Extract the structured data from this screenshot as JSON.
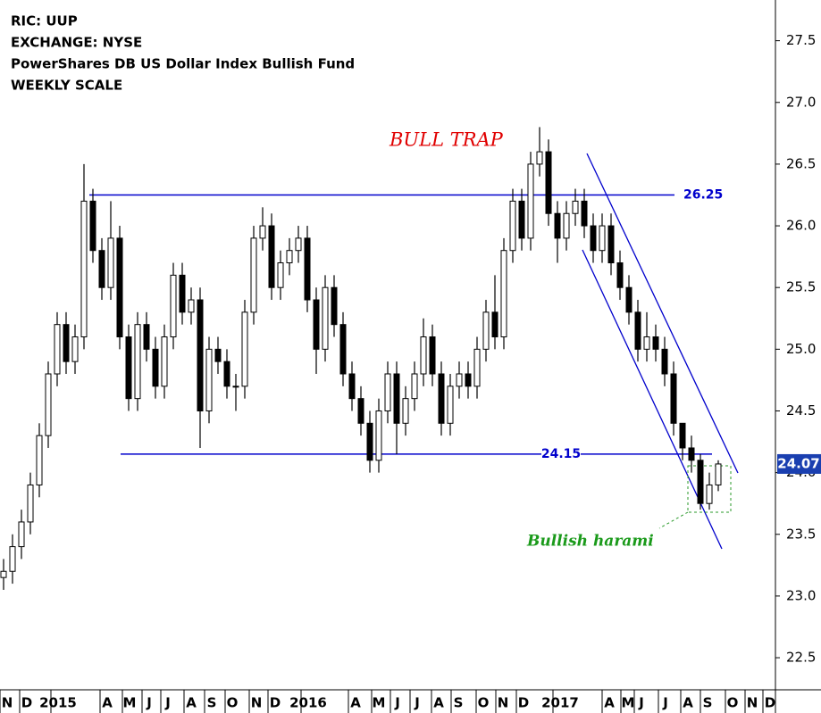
{
  "chart_data": {
    "type": "candlestick",
    "header": [
      "RIC: UUP",
      "EXCHANGE: NYSE",
      "PowerShares DB US Dollar Index Bullish Fund",
      "WEEKLY SCALE"
    ],
    "annotations": {
      "bull_trap": "BULL TRAP",
      "harami": "Bullish harami"
    },
    "levels": [
      26.25,
      24.15
    ],
    "last_price": 24.07,
    "open": [
      23.15,
      23.2,
      23.4,
      23.6,
      23.9,
      24.3,
      24.8,
      25.2,
      24.9,
      25.1,
      26.2,
      25.8,
      25.5,
      25.9,
      25.1,
      24.6,
      25.2,
      25.0,
      24.7,
      25.1,
      25.6,
      25.3,
      25.4,
      24.5,
      25.0,
      24.9,
      24.7,
      24.7,
      25.3,
      25.9,
      26.0,
      25.5,
      25.7,
      25.8,
      25.9,
      25.4,
      25.0,
      25.5,
      25.2,
      24.8,
      24.6,
      24.4,
      24.1,
      24.5,
      24.8,
      24.4,
      24.6,
      24.8,
      25.1,
      24.8,
      24.4,
      24.7,
      24.8,
      24.7,
      25.0,
      25.3,
      25.1,
      25.8,
      26.2,
      25.9,
      26.5,
      26.6,
      26.1,
      25.9,
      26.1,
      26.2,
      26.0,
      25.8,
      26.0,
      25.7,
      25.5,
      25.3,
      25.0,
      25.1,
      25.0,
      24.8,
      24.4,
      24.2,
      24.1,
      23.75,
      23.9
    ],
    "high": [
      23.3,
      23.5,
      23.7,
      24.0,
      24.4,
      24.9,
      25.3,
      25.3,
      25.2,
      26.5,
      26.3,
      25.9,
      26.2,
      26.0,
      25.2,
      25.3,
      25.3,
      25.1,
      25.2,
      25.7,
      25.7,
      25.5,
      25.5,
      25.1,
      25.1,
      25.0,
      24.8,
      25.4,
      26.0,
      26.15,
      26.1,
      25.8,
      25.9,
      26.0,
      26.0,
      25.5,
      25.6,
      25.6,
      25.3,
      24.9,
      24.7,
      24.5,
      24.6,
      24.9,
      24.9,
      24.7,
      24.9,
      25.25,
      25.2,
      24.9,
      24.8,
      24.9,
      24.9,
      25.1,
      25.4,
      25.6,
      25.9,
      26.3,
      26.3,
      26.6,
      26.8,
      26.7,
      26.2,
      26.2,
      26.3,
      26.3,
      26.1,
      26.1,
      26.1,
      25.8,
      25.6,
      25.4,
      25.3,
      25.2,
      25.1,
      24.9,
      24.4,
      24.3,
      24.15,
      24.0,
      24.1
    ],
    "low": [
      23.05,
      23.1,
      23.3,
      23.5,
      23.8,
      24.2,
      24.7,
      24.8,
      24.8,
      25.0,
      25.7,
      25.4,
      25.4,
      25.0,
      24.5,
      24.5,
      24.9,
      24.6,
      24.6,
      25.0,
      25.2,
      25.2,
      24.2,
      24.4,
      24.8,
      24.6,
      24.5,
      24.6,
      25.2,
      25.8,
      25.4,
      25.4,
      25.6,
      25.7,
      25.3,
      24.8,
      24.9,
      25.1,
      24.7,
      24.5,
      24.3,
      24.0,
      24.0,
      24.4,
      24.15,
      24.3,
      24.5,
      24.7,
      24.7,
      24.3,
      24.3,
      24.6,
      24.6,
      24.6,
      24.9,
      25.0,
      25.0,
      25.7,
      25.8,
      25.8,
      26.4,
      26.0,
      25.7,
      25.8,
      26.0,
      25.9,
      25.7,
      25.7,
      25.6,
      25.4,
      25.2,
      24.9,
      24.9,
      24.9,
      24.7,
      24.3,
      24.1,
      24.0,
      23.7,
      23.7,
      23.85
    ],
    "close": [
      23.2,
      23.4,
      23.6,
      23.9,
      24.3,
      24.8,
      25.2,
      24.9,
      25.1,
      26.2,
      25.8,
      25.5,
      25.9,
      25.1,
      24.6,
      25.2,
      25.0,
      24.7,
      25.1,
      25.6,
      25.3,
      25.4,
      24.5,
      25.0,
      24.9,
      24.7,
      24.7,
      25.3,
      25.9,
      26.0,
      25.5,
      25.7,
      25.8,
      25.9,
      25.4,
      25.0,
      25.5,
      25.2,
      24.8,
      24.6,
      24.4,
      24.1,
      24.5,
      24.8,
      24.4,
      24.6,
      24.8,
      25.1,
      24.8,
      24.4,
      24.7,
      24.8,
      24.7,
      25.0,
      25.3,
      25.1,
      25.8,
      26.2,
      25.9,
      26.5,
      26.6,
      26.1,
      25.9,
      26.1,
      26.2,
      26.0,
      25.8,
      26.0,
      25.7,
      25.5,
      25.3,
      25.0,
      25.1,
      25.0,
      24.8,
      24.4,
      24.2,
      24.1,
      23.75,
      23.9,
      24.07
    ],
    "xlim": [
      -0.4,
      86.4
    ],
    "xticks": [
      {
        "value": 0.4,
        "label": "N"
      },
      {
        "value": 2.6,
        "label": "D"
      },
      {
        "value": 6.1,
        "label": "2015"
      },
      {
        "value": 11.6,
        "label": "A"
      },
      {
        "value": 14.1,
        "label": "M"
      },
      {
        "value": 16.3,
        "label": "J"
      },
      {
        "value": 18.4,
        "label": "J"
      },
      {
        "value": 21,
        "label": "A"
      },
      {
        "value": 23.3,
        "label": "S"
      },
      {
        "value": 25.6,
        "label": "O"
      },
      {
        "value": 28.3,
        "label": "N"
      },
      {
        "value": 30.4,
        "label": "D"
      },
      {
        "value": 34.1,
        "label": "2016"
      },
      {
        "value": 39.4,
        "label": "A"
      },
      {
        "value": 42,
        "label": "M"
      },
      {
        "value": 44.1,
        "label": "J"
      },
      {
        "value": 46.3,
        "label": "J"
      },
      {
        "value": 48.7,
        "label": "A"
      },
      {
        "value": 50.9,
        "label": "S"
      },
      {
        "value": 53.7,
        "label": "O"
      },
      {
        "value": 55.9,
        "label": "N"
      },
      {
        "value": 58.2,
        "label": "D"
      },
      {
        "value": 62.3,
        "label": "2017"
      },
      {
        "value": 67.8,
        "label": "A"
      },
      {
        "value": 69.9,
        "label": "M"
      },
      {
        "value": 71.4,
        "label": "J"
      },
      {
        "value": 74.1,
        "label": "J"
      },
      {
        "value": 76.6,
        "label": "A"
      },
      {
        "value": 78.8,
        "label": "S"
      },
      {
        "value": 81.6,
        "label": "O"
      },
      {
        "value": 83.8,
        "label": "N"
      },
      {
        "value": 85.8,
        "label": "D"
      }
    ],
    "ylim": [
      22.24,
      27.83
    ],
    "yticks": [
      22.5,
      {
        "value": 23,
        "label": "23.0"
      },
      23.5,
      {
        "value": 24,
        "label": "24.0"
      },
      24.5,
      {
        "value": 25,
        "label": "25.0"
      },
      25.5,
      {
        "value": 26,
        "label": "26.0"
      },
      26.5,
      {
        "value": 27,
        "label": "27.0"
      },
      27.5
    ],
    "colors": {
      "up": "#ffffff",
      "down": "#000000",
      "level": "#0000cc"
    }
  }
}
